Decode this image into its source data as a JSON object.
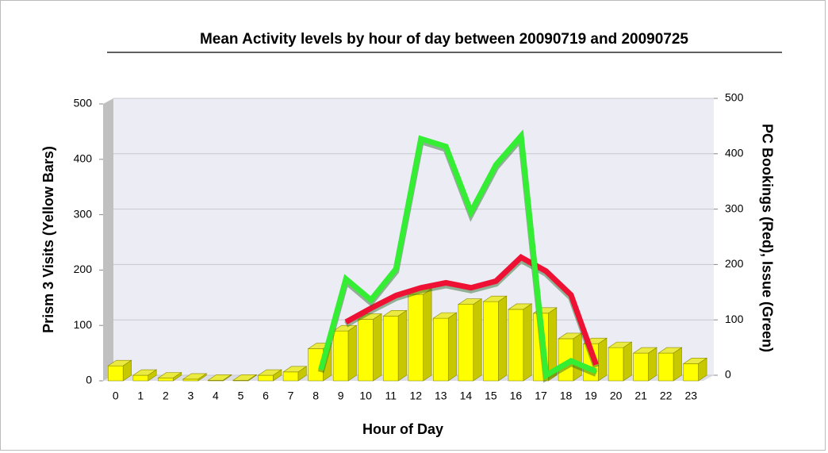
{
  "chart_data": {
    "type": "bar",
    "title": "Mean Activity levels by hour of day between 20090719 and 20090725",
    "x_label": "Hour of Day",
    "y_label": "Prism 3 Visits (Yellow Bars)",
    "y2_label": "PC Bookings (Red), Issue (Green)",
    "categories": [
      "0",
      "1",
      "2",
      "3",
      "4",
      "5",
      "6",
      "7",
      "8",
      "9",
      "10",
      "11",
      "12",
      "13",
      "14",
      "15",
      "16",
      "17",
      "18",
      "19",
      "20",
      "21",
      "22",
      "23"
    ],
    "series": [
      {
        "name": "Prism 3 Visits",
        "type": "bar",
        "color": "#ffff00",
        "values": [
          27,
          10,
          5,
          3,
          1,
          1,
          10,
          16,
          58,
          90,
          111,
          117,
          156,
          113,
          138,
          143,
          129,
          122,
          76,
          67,
          60,
          50,
          50,
          31
        ]
      },
      {
        "name": "PC Bookings",
        "type": "line",
        "axis": "y2",
        "color": "#ee1133",
        "values": [
          null,
          null,
          null,
          null,
          null,
          null,
          null,
          null,
          null,
          96,
          121,
          144,
          158,
          167,
          158,
          170,
          213,
          188,
          145,
          19,
          null,
          null,
          null,
          null
        ]
      },
      {
        "name": "Issue",
        "type": "line",
        "axis": "y2",
        "color": "#33ee33",
        "values": [
          null,
          null,
          null,
          null,
          null,
          null,
          null,
          null,
          10,
          174,
          136,
          192,
          427,
          413,
          295,
          380,
          432,
          0,
          26,
          7,
          null,
          null,
          null,
          null
        ]
      }
    ],
    "ylim": [
      0,
      500
    ],
    "yticks": [
      0,
      100,
      200,
      300,
      400,
      500
    ],
    "y2lim": [
      0,
      500
    ],
    "y2ticks": [
      0,
      100,
      200,
      300,
      400,
      500
    ],
    "grid": true
  }
}
